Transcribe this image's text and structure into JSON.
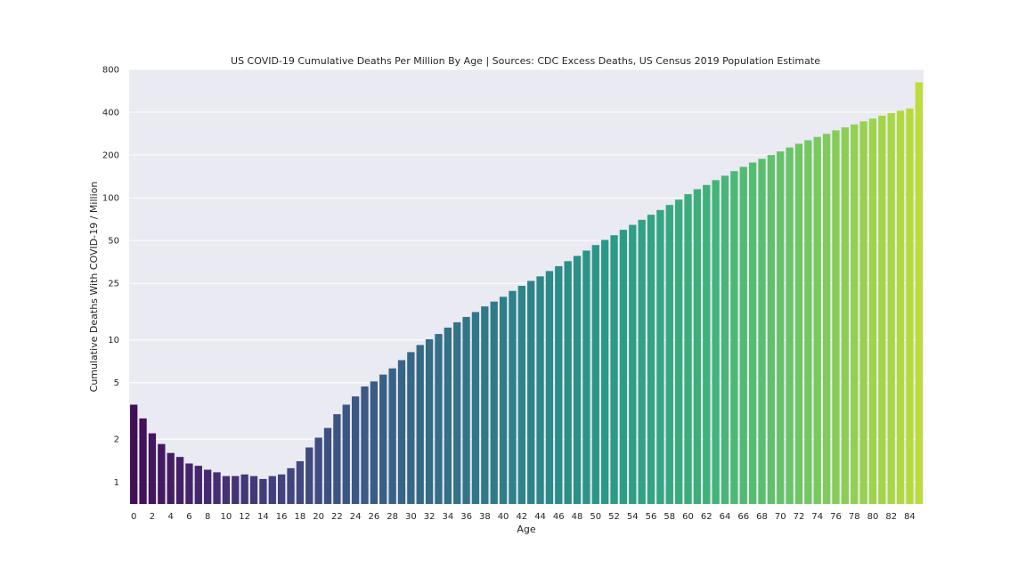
{
  "chart_data": {
    "type": "bar",
    "title": "US COVID-19 Cumulative Deaths Per Million By Age | Sources: CDC Excess Deaths, US Census 2019 Population Estimate",
    "xlabel": "Age",
    "ylabel": "Cumulative Deaths With COVID-19 / Million",
    "yscale": "log",
    "ylim": [
      0.7,
      800
    ],
    "y_ticks": [
      1,
      2,
      5,
      10,
      25,
      50,
      100,
      200,
      400,
      800
    ],
    "y_tick_labels": [
      "1",
      "2",
      "5",
      "10",
      "25",
      "50",
      "100",
      "200",
      "400",
      "800"
    ],
    "x_tick_labels": [
      "0",
      "2",
      "4",
      "6",
      "8",
      "10",
      "12",
      "14",
      "16",
      "18",
      "20",
      "22",
      "24",
      "26",
      "28",
      "30",
      "32",
      "34",
      "36",
      "38",
      "40",
      "42",
      "44",
      "46",
      "48",
      "50",
      "52",
      "54",
      "56",
      "58",
      "60",
      "62",
      "64",
      "66",
      "68",
      "70",
      "72",
      "74",
      "76",
      "78",
      "80",
      "82",
      "84"
    ],
    "grid": true,
    "palette": "viridis",
    "categories": [
      "0",
      "1",
      "2",
      "3",
      "4",
      "5",
      "6",
      "7",
      "8",
      "9",
      "10",
      "11",
      "12",
      "13",
      "14",
      "15",
      "16",
      "17",
      "18",
      "19",
      "20",
      "21",
      "22",
      "23",
      "24",
      "25",
      "26",
      "27",
      "28",
      "29",
      "30",
      "31",
      "32",
      "33",
      "34",
      "35",
      "36",
      "37",
      "38",
      "39",
      "40",
      "41",
      "42",
      "43",
      "44",
      "45",
      "46",
      "47",
      "48",
      "49",
      "50",
      "51",
      "52",
      "53",
      "54",
      "55",
      "56",
      "57",
      "58",
      "59",
      "60",
      "61",
      "62",
      "63",
      "64",
      "65",
      "66",
      "67",
      "68",
      "69",
      "70",
      "71",
      "72",
      "73",
      "74",
      "75",
      "76",
      "77",
      "78",
      "79",
      "80",
      "81",
      "82",
      "83",
      "84",
      "85"
    ],
    "values": [
      3.5,
      2.8,
      2.2,
      1.85,
      1.6,
      1.5,
      1.35,
      1.3,
      1.22,
      1.17,
      1.1,
      1.1,
      1.13,
      1.1,
      1.05,
      1.1,
      1.13,
      1.25,
      1.4,
      1.75,
      2.05,
      2.4,
      3.0,
      3.5,
      4.0,
      4.7,
      5.1,
      5.7,
      6.3,
      7.2,
      8.2,
      9.2,
      10.1,
      11.0,
      12.2,
      13.3,
      14.5,
      15.7,
      17.2,
      18.6,
      20.1,
      22.1,
      24.0,
      26.0,
      28.0,
      30.5,
      33.0,
      35.8,
      39.0,
      42.5,
      46.5,
      50.5,
      54.5,
      59.5,
      64.5,
      70.0,
      76.0,
      82.0,
      89.0,
      97.0,
      106.0,
      115.0,
      123.0,
      133.0,
      143.0,
      154.0,
      165.0,
      177.0,
      188.0,
      200.0,
      212.0,
      226.0,
      240.0,
      254.0,
      268.0,
      282.0,
      298.0,
      313.0,
      328.0,
      345.0,
      361.0,
      378.0,
      394.0,
      410.0,
      425.0,
      650.0
    ]
  },
  "colors": {
    "plot_background": "#eaeaf2",
    "gridline": "#ffffff",
    "page_background": "#ffffff",
    "text": "#262626"
  }
}
